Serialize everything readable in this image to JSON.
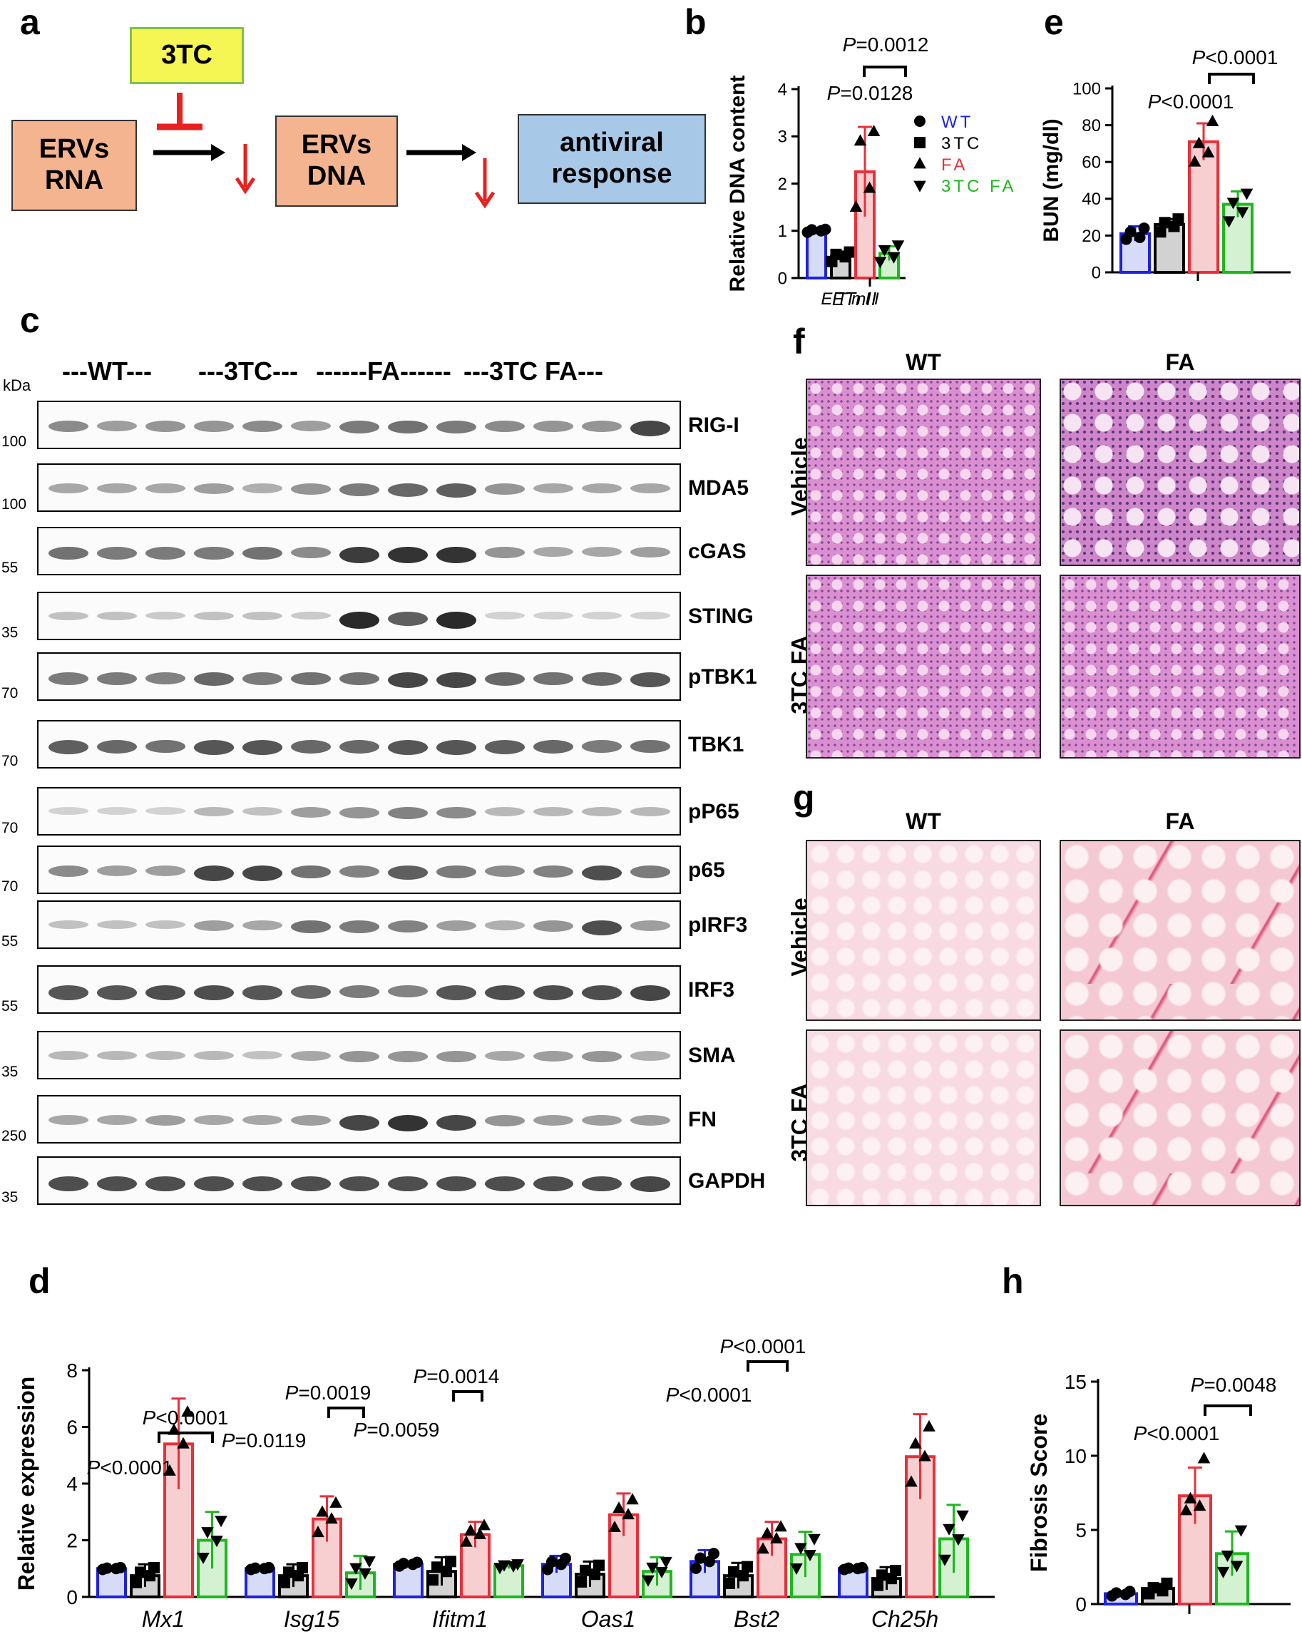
{
  "panels": {
    "a": "a",
    "b": "b",
    "c": "c",
    "d": "d",
    "e": "e",
    "f": "f",
    "g": "g",
    "h": "h"
  },
  "schematic": {
    "drug": "3TC",
    "rna": "ERVs\nRNA",
    "dna": "ERVs\nDNA",
    "response": "antiviral\nresponse",
    "colors": {
      "drug_bg": "#f5f554",
      "drug_border": "#7fc241",
      "erv_bg": "#f3b48f",
      "resp_bg": "#a8c8e8",
      "inhibit": "#e8201f"
    }
  },
  "groups": [
    {
      "name": "WT",
      "color": "#1e22e0",
      "fill": "#d6dcf7",
      "marker": "circle"
    },
    {
      "name": "3TC",
      "color": "#000000",
      "fill": "#d2d2d2",
      "marker": "square"
    },
    {
      "name": "FA",
      "color": "#e8303a",
      "fill": "#f7cfd1",
      "marker": "triangle-up"
    },
    {
      "name": "3TC FA",
      "color": "#1fb71f",
      "fill": "#d4f1d2",
      "marker": "triangle-down"
    }
  ],
  "chart_data": [
    {
      "id": "b",
      "type": "bar",
      "ylabel": "Relative DNA content",
      "xlabel": "ETnII",
      "ylim": [
        0,
        4
      ],
      "yticks": [
        0,
        1,
        2,
        3,
        4
      ],
      "categories": [
        "ETnII"
      ],
      "series": [
        {
          "name": "WT",
          "values": [
            1.0
          ],
          "err": [
            0.04
          ],
          "points": [
            0.97,
            1.0,
            1.02,
            1.03
          ]
        },
        {
          "name": "3TC",
          "values": [
            0.46
          ],
          "err": [
            0.1
          ],
          "points": [
            0.35,
            0.45,
            0.5,
            0.55
          ]
        },
        {
          "name": "FA",
          "values": [
            2.25
          ],
          "err": [
            0.95
          ],
          "points": [
            1.5,
            1.9,
            2.9,
            3.1
          ]
        },
        {
          "name": "3TC FA",
          "values": [
            0.52
          ],
          "err": [
            0.15
          ],
          "points": [
            0.35,
            0.45,
            0.6,
            0.7
          ]
        }
      ],
      "legend": [
        "WT",
        "3TC",
        "FA",
        "3TC FA"
      ],
      "annotations": [
        {
          "text": "P=0.0012"
        },
        {
          "text": "P=0.0128"
        }
      ]
    },
    {
      "id": "e",
      "type": "bar",
      "ylabel": "BUN (mg/dl)",
      "ylim": [
        0,
        100
      ],
      "yticks": [
        0,
        20,
        40,
        60,
        80,
        100
      ],
      "categories": [
        ""
      ],
      "series": [
        {
          "name": "WT",
          "values": [
            21
          ],
          "err": [
            4
          ],
          "points": [
            18,
            19,
            22,
            24
          ]
        },
        {
          "name": "3TC",
          "values": [
            26
          ],
          "err": [
            3
          ],
          "points": [
            22,
            25,
            27,
            29
          ]
        },
        {
          "name": "FA",
          "values": [
            71
          ],
          "err": [
            10
          ],
          "points": [
            60,
            65,
            70,
            82
          ]
        },
        {
          "name": "3TC FA",
          "values": [
            37
          ],
          "err": [
            7
          ],
          "points": [
            28,
            33,
            38,
            43
          ]
        }
      ],
      "annotations": [
        {
          "text": "P<0.0001"
        },
        {
          "text": "P<0.0001"
        }
      ]
    },
    {
      "id": "d",
      "type": "bar",
      "ylabel": "Relative expression",
      "ylim": [
        0,
        8
      ],
      "yticks": [
        0,
        2,
        4,
        6,
        8
      ],
      "categories": [
        "Mx1",
        "Isg15",
        "Ifitm1",
        "Oas1",
        "Bst2",
        "Ch25h"
      ],
      "series": [
        {
          "name": "WT",
          "values": [
            1.0,
            1.0,
            1.15,
            1.15,
            1.25,
            1.0
          ],
          "err": [
            0.05,
            0.05,
            0.1,
            0.3,
            0.4,
            0.05
          ]
        },
        {
          "name": "3TC",
          "values": [
            0.75,
            0.75,
            0.9,
            0.8,
            0.75,
            0.65
          ],
          "err": [
            0.4,
            0.4,
            0.5,
            0.45,
            0.45,
            0.4
          ]
        },
        {
          "name": "FA",
          "values": [
            5.4,
            2.75,
            2.2,
            2.9,
            2.05,
            4.95
          ],
          "err": [
            1.6,
            0.8,
            0.45,
            0.75,
            0.6,
            1.5
          ]
        },
        {
          "name": "3TC FA",
          "values": [
            2.0,
            0.85,
            1.1,
            0.9,
            1.5,
            2.05
          ],
          "err": [
            1.0,
            0.6,
            0.1,
            0.5,
            0.8,
            1.2
          ]
        }
      ],
      "annotations": [
        {
          "text": "P<0.0001"
        },
        {
          "text": "P<0.0001"
        },
        {
          "text": "P=0.0019"
        },
        {
          "text": "P=0.0119"
        },
        {
          "text": "P=0.0014"
        },
        {
          "text": "P=0.0059"
        },
        {
          "text": "P<0.0001"
        },
        {
          "text": "P<0.0001"
        }
      ]
    },
    {
      "id": "h",
      "type": "bar",
      "ylabel": "Fibrosis Score",
      "ylim": [
        0,
        15
      ],
      "yticks": [
        0,
        5,
        10,
        15
      ],
      "categories": [
        ""
      ],
      "series": [
        {
          "name": "WT",
          "values": [
            0.7
          ],
          "err": [
            0.15
          ],
          "points": [
            0.55,
            0.65,
            0.75,
            0.85
          ]
        },
        {
          "name": "3TC",
          "values": [
            1.05
          ],
          "err": [
            0.3
          ],
          "points": [
            0.7,
            0.9,
            1.1,
            1.4
          ]
        },
        {
          "name": "FA",
          "values": [
            7.3
          ],
          "err": [
            1.9
          ],
          "points": [
            6.3,
            6.6,
            7.1,
            9.8
          ]
        },
        {
          "name": "3TC FA",
          "values": [
            3.4
          ],
          "err": [
            1.5
          ],
          "points": [
            2.2,
            2.6,
            3.3,
            5.0
          ]
        }
      ],
      "annotations": [
        {
          "text": "P=0.0048"
        },
        {
          "text": "P<0.0001"
        }
      ]
    }
  ],
  "western": {
    "kda": "kDa",
    "groups": [
      "---WT---",
      "---3TC---",
      "------FA------",
      "---3TC FA---"
    ],
    "rows": [
      {
        "name": "RIG-I",
        "mw": "100",
        "intensity": [
          0.45,
          0.35,
          0.4,
          0.4,
          0.45,
          0.35,
          0.55,
          0.6,
          0.55,
          0.45,
          0.4,
          0.4,
          0.85
        ]
      },
      {
        "name": "MDA5",
        "mw": "100",
        "intensity": [
          0.3,
          0.3,
          0.3,
          0.35,
          0.25,
          0.4,
          0.55,
          0.65,
          0.7,
          0.4,
          0.3,
          0.3,
          0.3
        ]
      },
      {
        "name": "cGAS",
        "mw": "55",
        "intensity": [
          0.6,
          0.55,
          0.55,
          0.55,
          0.6,
          0.45,
          0.9,
          0.95,
          0.95,
          0.4,
          0.3,
          0.3,
          0.35
        ]
      },
      {
        "name": "STING",
        "mw": "35",
        "intensity": [
          0.15,
          0.15,
          0.1,
          0.15,
          0.15,
          0.1,
          1.0,
          0.7,
          1.0,
          0.05,
          0.05,
          0.05,
          0.05
        ]
      },
      {
        "name": "pTBK1",
        "mw": "70",
        "intensity": [
          0.55,
          0.55,
          0.5,
          0.65,
          0.55,
          0.6,
          0.6,
          0.85,
          0.85,
          0.65,
          0.6,
          0.65,
          0.75
        ]
      },
      {
        "name": "TBK1",
        "mw": "70",
        "intensity": [
          0.7,
          0.65,
          0.6,
          0.75,
          0.75,
          0.65,
          0.65,
          0.75,
          0.75,
          0.7,
          0.65,
          0.55,
          0.6
        ]
      },
      {
        "name": "pP65",
        "mw": "70",
        "intensity": [
          0.05,
          0.05,
          0.05,
          0.2,
          0.15,
          0.35,
          0.4,
          0.5,
          0.45,
          0.2,
          0.2,
          0.2,
          0.2
        ]
      },
      {
        "name": "p65",
        "mw": "70",
        "intensity": [
          0.45,
          0.35,
          0.35,
          0.85,
          0.85,
          0.6,
          0.5,
          0.7,
          0.55,
          0.45,
          0.5,
          0.8,
          0.55
        ]
      },
      {
        "name": "pIRF3",
        "mw": "55",
        "intensity": [
          0.15,
          0.15,
          0.15,
          0.35,
          0.3,
          0.6,
          0.55,
          0.5,
          0.35,
          0.25,
          0.4,
          0.8,
          0.35
        ]
      },
      {
        "name": "IRF3",
        "mw": "55",
        "intensity": [
          0.75,
          0.75,
          0.8,
          0.8,
          0.75,
          0.65,
          0.55,
          0.5,
          0.75,
          0.8,
          0.8,
          0.8,
          0.85
        ]
      },
      {
        "name": "SMA",
        "mw": "35",
        "intensity": [
          0.2,
          0.2,
          0.2,
          0.2,
          0.15,
          0.3,
          0.4,
          0.4,
          0.4,
          0.3,
          0.35,
          0.4,
          0.25
        ]
      },
      {
        "name": "FN",
        "mw": "250",
        "intensity": [
          0.3,
          0.3,
          0.35,
          0.3,
          0.3,
          0.35,
          0.85,
          0.95,
          0.85,
          0.4,
          0.35,
          0.35,
          0.35
        ]
      },
      {
        "name": "GAPDH",
        "mw": "35",
        "intensity": [
          0.8,
          0.8,
          0.8,
          0.8,
          0.8,
          0.8,
          0.8,
          0.8,
          0.8,
          0.8,
          0.8,
          0.8,
          0.85
        ]
      }
    ]
  },
  "histology": {
    "f": {
      "cols": [
        "WT",
        "FA"
      ],
      "rows": [
        "Vehicle",
        "3TC FA"
      ]
    },
    "g": {
      "cols": [
        "WT",
        "FA"
      ],
      "rows": [
        "Vehicle",
        "3TC FA"
      ]
    }
  }
}
